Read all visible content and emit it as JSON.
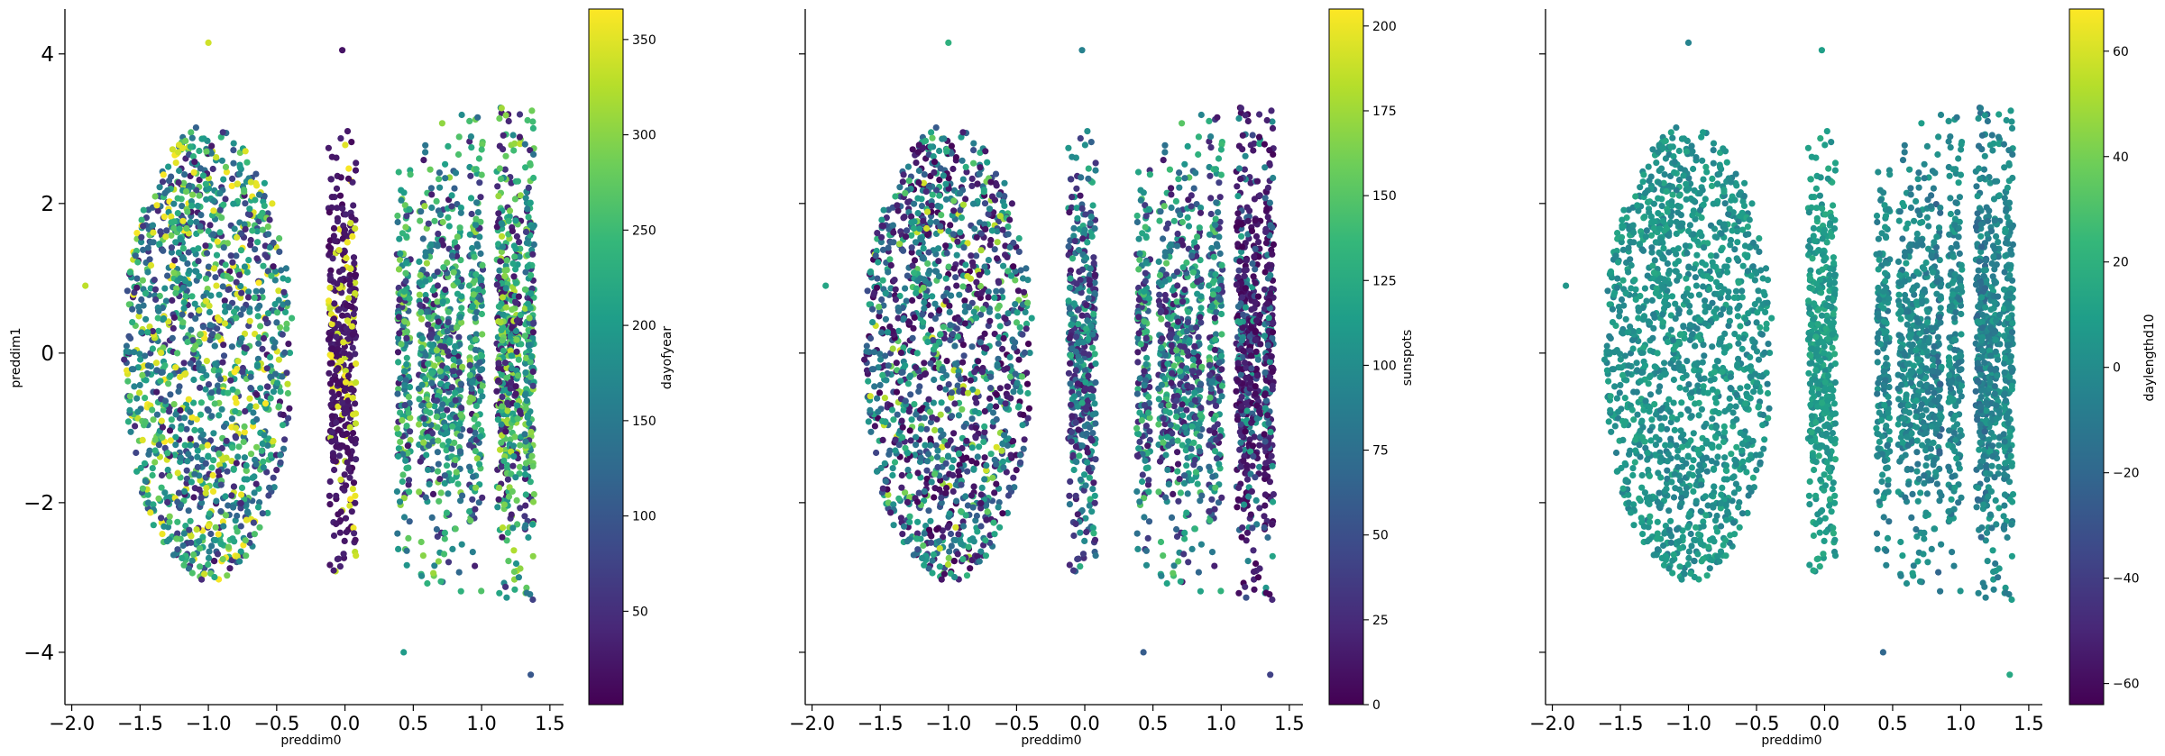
{
  "figure": {
    "panels_count": 3,
    "shared_y": true
  },
  "chart_data": [
    {
      "type": "scatter",
      "xlabel": "preddim0",
      "ylabel": "preddim1",
      "xlim": [
        -2.05,
        1.6
      ],
      "ylim": [
        -4.7,
        4.6
      ],
      "xticks": [
        -2.0,
        -1.5,
        -1.0,
        -0.5,
        0.0,
        0.5,
        1.0,
        1.5
      ],
      "xtick_labels": [
        "−2.0",
        "−1.5",
        "−1.0",
        "−0.5",
        "0.0",
        "0.5",
        "1.0",
        "1.5"
      ],
      "yticks": [
        -4,
        -2,
        0,
        2,
        4
      ],
      "ytick_labels": [
        "−4",
        "−2",
        "0",
        "2",
        "4"
      ],
      "colorbar": {
        "label": "dayofyear",
        "range": [
          1,
          366
        ],
        "ticks": [
          50,
          100,
          150,
          200,
          250,
          300,
          350
        ],
        "tick_labels": [
          "50",
          "100",
          "150",
          "200",
          "250",
          "300",
          "350"
        ]
      },
      "color_mode": "panel1",
      "clusters": [
        {
          "name": "blob",
          "x_center": -1.0,
          "x_halfwidth": 0.62,
          "y_halfheight": 3.05,
          "points": 1400
        },
        {
          "name": "strip_0.0",
          "x_center": -0.02,
          "x_halfwidth": 0.1,
          "y_halfheight": 3.0,
          "points": 420
        },
        {
          "name": "strip_0.43",
          "x_center": 0.43,
          "x_halfwidth": 0.05,
          "y_halfheight": 3.0,
          "points": 180
        },
        {
          "name": "strip_0.6",
          "x_center": 0.6,
          "x_halfwidth": 0.06,
          "y_halfheight": 3.1,
          "points": 190
        },
        {
          "name": "strip_0.72",
          "x_center": 0.72,
          "x_halfwidth": 0.05,
          "y_halfheight": 3.1,
          "points": 170
        },
        {
          "name": "strip_0.82",
          "x_center": 0.82,
          "x_halfwidth": 0.04,
          "y_halfheight": 3.2,
          "points": 150
        },
        {
          "name": "strip_0.95",
          "x_center": 0.96,
          "x_halfwidth": 0.05,
          "y_halfheight": 3.2,
          "points": 190
        },
        {
          "name": "strip_1.15",
          "x_center": 1.16,
          "x_halfwidth": 0.05,
          "y_halfheight": 3.5,
          "points": 260
        },
        {
          "name": "strip_1.25",
          "x_center": 1.25,
          "x_halfwidth": 0.04,
          "y_halfheight": 3.2,
          "points": 170
        },
        {
          "name": "strip_1.35",
          "x_center": 1.35,
          "x_halfwidth": 0.035,
          "y_halfheight": 3.4,
          "points": 200
        }
      ],
      "highlighted_points": [
        {
          "x": -1.0,
          "y": 4.15,
          "c": 340
        },
        {
          "x": -0.02,
          "y": 4.05,
          "c": 20
        },
        {
          "x": -1.9,
          "y": 0.9,
          "c": 330
        },
        {
          "x": 0.43,
          "y": -4.0,
          "c": 200
        },
        {
          "x": 1.36,
          "y": -4.3,
          "c": 100
        }
      ]
    },
    {
      "type": "scatter",
      "xlabel": "preddim0",
      "ylabel": "",
      "xlim": [
        -2.05,
        1.6
      ],
      "ylim": [
        -4.7,
        4.6
      ],
      "xticks": [
        -2.0,
        -1.5,
        -1.0,
        -0.5,
        0.0,
        0.5,
        1.0,
        1.5
      ],
      "xtick_labels": [
        "−2.0",
        "−1.5",
        "−1.0",
        "−0.5",
        "0.0",
        "0.5",
        "1.0",
        "1.5"
      ],
      "yticks": [
        -4,
        -2,
        0,
        2,
        4
      ],
      "ytick_labels": [
        "",
        "",
        "",
        "",
        ""
      ],
      "colorbar": {
        "label": "sunspots",
        "range": [
          0,
          205
        ],
        "ticks": [
          0,
          25,
          50,
          75,
          100,
          125,
          150,
          175,
          200
        ],
        "tick_labels": [
          "0",
          "25",
          "50",
          "75",
          "100",
          "125",
          "150",
          "175",
          "200"
        ]
      },
      "color_mode": "panel2",
      "clusters": [
        {
          "name": "blob",
          "x_center": -1.0,
          "x_halfwidth": 0.62,
          "y_halfheight": 3.05,
          "points": 1400
        },
        {
          "name": "strip_0.0",
          "x_center": -0.02,
          "x_halfwidth": 0.1,
          "y_halfheight": 3.0,
          "points": 420
        },
        {
          "name": "strip_0.43",
          "x_center": 0.43,
          "x_halfwidth": 0.05,
          "y_halfheight": 3.0,
          "points": 180
        },
        {
          "name": "strip_0.6",
          "x_center": 0.6,
          "x_halfwidth": 0.06,
          "y_halfheight": 3.1,
          "points": 190
        },
        {
          "name": "strip_0.72",
          "x_center": 0.72,
          "x_halfwidth": 0.05,
          "y_halfheight": 3.1,
          "points": 170
        },
        {
          "name": "strip_0.82",
          "x_center": 0.82,
          "x_halfwidth": 0.04,
          "y_halfheight": 3.2,
          "points": 150
        },
        {
          "name": "strip_0.95",
          "x_center": 0.96,
          "x_halfwidth": 0.05,
          "y_halfheight": 3.2,
          "points": 190
        },
        {
          "name": "strip_1.15",
          "x_center": 1.16,
          "x_halfwidth": 0.05,
          "y_halfheight": 3.5,
          "points": 260
        },
        {
          "name": "strip_1.25",
          "x_center": 1.25,
          "x_halfwidth": 0.04,
          "y_halfheight": 3.2,
          "points": 170
        },
        {
          "name": "strip_1.35",
          "x_center": 1.35,
          "x_halfwidth": 0.035,
          "y_halfheight": 3.4,
          "points": 200
        }
      ],
      "highlighted_points": [
        {
          "x": -1.0,
          "y": 4.15,
          "c": 130
        },
        {
          "x": -0.02,
          "y": 4.05,
          "c": 90
        },
        {
          "x": -1.9,
          "y": 0.9,
          "c": 120
        },
        {
          "x": 0.43,
          "y": -4.0,
          "c": 60
        },
        {
          "x": 1.36,
          "y": -4.3,
          "c": 40
        }
      ]
    },
    {
      "type": "scatter",
      "xlabel": "preddim0",
      "ylabel": "",
      "xlim": [
        -2.05,
        1.6
      ],
      "ylim": [
        -4.7,
        4.6
      ],
      "xticks": [
        -2.0,
        -1.5,
        -1.0,
        -0.5,
        0.0,
        0.5,
        1.0,
        1.5
      ],
      "xtick_labels": [
        "−2.0",
        "−1.5",
        "−1.0",
        "−0.5",
        "0.0",
        "0.5",
        "1.0",
        "1.5"
      ],
      "yticks": [
        -4,
        -2,
        0,
        2,
        4
      ],
      "ytick_labels": [
        "",
        "",
        "",
        "",
        ""
      ],
      "colorbar": {
        "label": "daylengthd10",
        "range": [
          -64,
          68
        ],
        "ticks": [
          -60,
          -40,
          -20,
          0,
          20,
          40,
          60
        ],
        "tick_labels": [
          "−60",
          "−40",
          "−20",
          "0",
          "20",
          "40",
          "60"
        ]
      },
      "color_mode": "panel3",
      "clusters": [
        {
          "name": "blob",
          "x_center": -1.0,
          "x_halfwidth": 0.62,
          "y_halfheight": 3.05,
          "points": 1400
        },
        {
          "name": "strip_0.0",
          "x_center": -0.02,
          "x_halfwidth": 0.1,
          "y_halfheight": 3.0,
          "points": 420
        },
        {
          "name": "strip_0.43",
          "x_center": 0.43,
          "x_halfwidth": 0.05,
          "y_halfheight": 3.0,
          "points": 180
        },
        {
          "name": "strip_0.6",
          "x_center": 0.6,
          "x_halfwidth": 0.06,
          "y_halfheight": 3.1,
          "points": 190
        },
        {
          "name": "strip_0.72",
          "x_center": 0.72,
          "x_halfwidth": 0.05,
          "y_halfheight": 3.1,
          "points": 170
        },
        {
          "name": "strip_0.82",
          "x_center": 0.82,
          "x_halfwidth": 0.04,
          "y_halfheight": 3.2,
          "points": 150
        },
        {
          "name": "strip_0.95",
          "x_center": 0.96,
          "x_halfwidth": 0.05,
          "y_halfheight": 3.2,
          "points": 190
        },
        {
          "name": "strip_1.15",
          "x_center": 1.16,
          "x_halfwidth": 0.05,
          "y_halfheight": 3.5,
          "points": 260
        },
        {
          "name": "strip_1.25",
          "x_center": 1.25,
          "x_halfwidth": 0.04,
          "y_halfheight": 3.2,
          "points": 170
        },
        {
          "name": "strip_1.35",
          "x_center": 1.35,
          "x_halfwidth": 0.035,
          "y_halfheight": 3.4,
          "points": 200
        }
      ],
      "highlighted_points": [
        {
          "x": -1.0,
          "y": 4.15,
          "c": -5
        },
        {
          "x": -0.02,
          "y": 4.05,
          "c": 10
        },
        {
          "x": -1.9,
          "y": 0.9,
          "c": 5
        },
        {
          "x": 0.43,
          "y": -4.0,
          "c": -20
        },
        {
          "x": 1.36,
          "y": -4.3,
          "c": 15
        }
      ]
    }
  ],
  "colormap": {
    "name": "viridis",
    "stops": [
      "#440154",
      "#482878",
      "#3e4989",
      "#31688e",
      "#26828e",
      "#1f9e89",
      "#35b779",
      "#6ece58",
      "#b5de2b",
      "#fde725"
    ]
  }
}
